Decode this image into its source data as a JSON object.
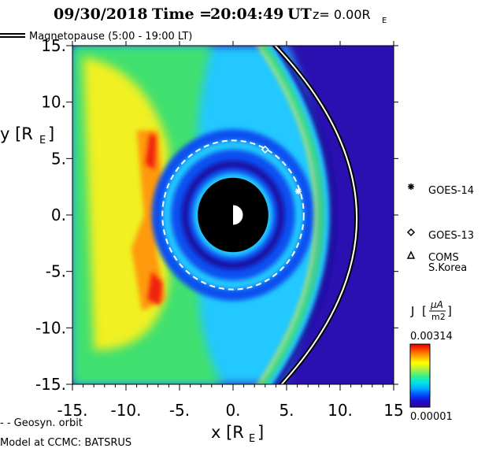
{
  "header": {
    "date": "09/30/2018",
    "time_label": "Time =",
    "time": "20:04:49",
    "time_unit": "UT",
    "z_label": "z= 0.00R",
    "z_sub": "E"
  },
  "legend_top": {
    "label": "Magnetopause (5:00 - 19:00 LT)"
  },
  "legend_bottom": {
    "geosyn_label": "- -  Geosyn. orbit",
    "model_label": "Model at CCMC: BATSRUS"
  },
  "colorbar": {
    "label": "J",
    "unit_top": "μA",
    "unit_bottom": "m2",
    "max_label": "0.00314",
    "min_label": "0.00001",
    "colors": [
      "#3b00a0",
      "#1a0fd0",
      "#0050ff",
      "#00b0ff",
      "#00e8e0",
      "#40f080",
      "#b0f040",
      "#ffff00",
      "#ffb000",
      "#ff5000",
      "#e00000"
    ]
  },
  "colors": {
    "background": "#2a10b0",
    "deep_blue": "#1e0a9e",
    "blue": "#1050f0",
    "cyan": "#20c8ff",
    "green": "#40e070",
    "yellow": "#f0f020",
    "orange": "#ff9a10",
    "red": "#f02010",
    "earth": "#000000"
  },
  "chart_data": {
    "type": "heatmap",
    "title": "",
    "xlabel": "x [R",
    "xlabel_sub": "E",
    "ylabel": "y [R",
    "ylabel_sub": "E",
    "xlim": [
      -15,
      15
    ],
    "ylim": [
      -15,
      15
    ],
    "xticks": [
      {
        "value": -15,
        "label": "-15."
      },
      {
        "value": -10,
        "label": "-10."
      },
      {
        "value": -5,
        "label": "-5."
      },
      {
        "value": 0,
        "label": "0."
      },
      {
        "value": 5,
        "label": "5."
      },
      {
        "value": 10,
        "label": "10."
      },
      {
        "value": 15,
        "label": "15"
      }
    ],
    "yticks": [
      {
        "value": 15,
        "label": "15."
      },
      {
        "value": 10,
        "label": "10."
      },
      {
        "value": 5,
        "label": "5."
      },
      {
        "value": 0,
        "label": "0."
      },
      {
        "value": -5,
        "label": "-5."
      },
      {
        "value": -10,
        "label": "-10."
      },
      {
        "value": -15,
        "label": "-15."
      }
    ],
    "earth_radius": 3.3,
    "geosyn_radius": 6.6,
    "magnetopause_standoff": 11.4,
    "satellites": [
      {
        "name": "GOES-14",
        "x": 6.1,
        "y": 2.1,
        "marker": "asterisk"
      },
      {
        "name": "GOES-13",
        "x": 3.0,
        "y": 5.8,
        "marker": "diamond"
      },
      {
        "name": "COMS S.Korea",
        "line1": "COMS",
        "line2": "S.Korea",
        "x": null,
        "y": null,
        "marker": "triangle"
      }
    ]
  }
}
